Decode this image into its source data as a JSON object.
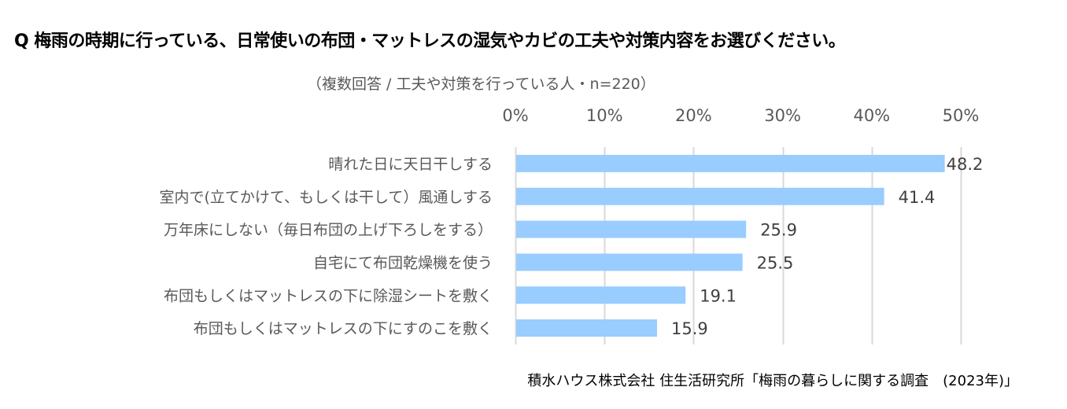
{
  "title": "Q  梅雨の時期に行っている、日常使いの布団・マットレスの湿気やカビの工夫や対策内容をお選びください。",
  "subtitle": "（複数回答 / 工夫や対策を行っている人・n=220）",
  "source": "積水ハウス株式会社 住生活研究所「梅雨の暮らしに関する調査　(2023年)」",
  "colors": {
    "bar": "#99CCFF",
    "grid": "#D9D9D9"
  },
  "chart_data": {
    "type": "bar",
    "orientation": "horizontal",
    "title": "Q  梅雨の時期に行っている、日常使いの布団・マットレスの湿気やカビの工夫や対策内容をお選びください。",
    "subtitle": "（複数回答 / 工夫や対策を行っている人・n=220）",
    "xlabel": "",
    "ylabel": "",
    "xlim": [
      0,
      50
    ],
    "x_ticks": [
      0,
      10,
      20,
      30,
      40,
      50
    ],
    "x_tick_labels": [
      "0%",
      "10%",
      "20%",
      "30%",
      "40%",
      "50%"
    ],
    "x_axis_position": "top",
    "grid": true,
    "categories": [
      "晴れた日に天日干しする",
      "室内で(立てかけて、もしくは干して）風通しする",
      "万年床にしない（毎日布団の上げ下ろしをする）",
      "自宅にて布団乾燥機を使う",
      "布団もしくはマットレスの下に除湿シートを敷く",
      "布団もしくはマットレスの下にすのこを敷く"
    ],
    "values": [
      48.2,
      41.4,
      25.9,
      25.5,
      19.1,
      15.9
    ],
    "data_labels": [
      "48.2",
      "41.4",
      "25.9",
      "25.5",
      "19.1",
      "15.9"
    ]
  }
}
